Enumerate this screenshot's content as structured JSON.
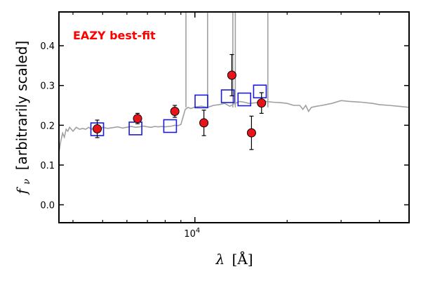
{
  "chart_data": {
    "type": "scatter",
    "title": "",
    "annotation": {
      "text": "EAZY best-fit",
      "color": "#ff0000"
    },
    "xlabel_var": "λ",
    "xlabel_unit": "[Å]",
    "ylabel_var": "f",
    "ylabel_sub": "ν",
    "ylabel_unit": "[arbitrarily scaled]",
    "x_scale": "log",
    "xlim": [
      3600,
      50000
    ],
    "ylim": [
      -0.045,
      0.485
    ],
    "y_ticks": [
      0.0,
      0.1,
      0.2,
      0.3,
      0.4
    ],
    "y_tick_labels": [
      "0.0",
      "0.1",
      "0.2",
      "0.3",
      "0.4"
    ],
    "x_ticks": [
      10000
    ],
    "x_tick_labels": [
      "10^4"
    ],
    "x_tick_base": "10",
    "x_tick_exp": "4",
    "grid": false,
    "colors": {
      "observed": "#e8141b",
      "model": "#1b1bdc",
      "sed": "#a0a0a0"
    },
    "series": [
      {
        "type": "sed_line",
        "x": [
          3600,
          3650,
          3700,
          3750,
          3800,
          3850,
          3900,
          3950,
          4000,
          4100,
          4200,
          4300,
          4400,
          4500,
          4600,
          4700,
          4800,
          4900,
          5000,
          5200,
          5400,
          5600,
          5800,
          6000,
          6200,
          6400,
          6600,
          6800,
          7000,
          7200,
          7400,
          7600,
          7800,
          8000,
          8200,
          8400,
          8600,
          8800,
          9000,
          9300,
          9500,
          9700,
          10000,
          10500,
          11000,
          11500,
          12000,
          12500,
          13000,
          13500,
          14000,
          14500,
          15000,
          16000,
          17000,
          18000,
          19000,
          20000,
          21000,
          22000,
          22500,
          23000,
          23500,
          24000,
          25000,
          26000,
          28000,
          30000,
          32000,
          35000,
          38000,
          40000,
          43000,
          46000,
          50000
        ],
        "y": [
          0.13,
          0.16,
          0.18,
          0.17,
          0.19,
          0.185,
          0.195,
          0.19,
          0.185,
          0.195,
          0.19,
          0.192,
          0.19,
          0.195,
          0.19,
          0.193,
          0.195,
          0.19,
          0.195,
          0.192,
          0.194,
          0.196,
          0.193,
          0.195,
          0.197,
          0.195,
          0.196,
          0.198,
          0.196,
          0.195,
          0.197,
          0.196,
          0.197,
          0.196,
          0.197,
          0.198,
          0.2,
          0.199,
          0.202,
          0.24,
          0.245,
          0.242,
          0.246,
          0.248,
          0.245,
          0.25,
          0.252,
          0.255,
          0.248,
          0.255,
          0.26,
          0.258,
          0.255,
          0.257,
          0.26,
          0.258,
          0.257,
          0.255,
          0.25,
          0.25,
          0.24,
          0.25,
          0.235,
          0.245,
          0.248,
          0.25,
          0.255,
          0.262,
          0.26,
          0.258,
          0.255,
          0.252,
          0.25,
          0.248,
          0.245
        ]
      },
      {
        "type": "sed_spikes",
        "x": [
          9350,
          11000,
          13300,
          13550,
          17300
        ],
        "y_top": [
          0.49,
          0.49,
          0.49,
          0.49,
          0.49
        ]
      },
      {
        "type": "model_squares",
        "x": [
          4800,
          6400,
          8300,
          10500,
          12800,
          14500,
          16300
        ],
        "y": [
          0.19,
          0.192,
          0.198,
          0.26,
          0.273,
          0.265,
          0.285
        ]
      },
      {
        "type": "observed_points",
        "x": [
          4800,
          6500,
          8600,
          10700,
          13200,
          15300,
          16500
        ],
        "y": [
          0.191,
          0.217,
          0.235,
          0.206,
          0.326,
          0.181,
          0.256
        ],
        "err": [
          0.022,
          0.013,
          0.015,
          0.032,
          0.052,
          0.042,
          0.026
        ]
      }
    ]
  }
}
